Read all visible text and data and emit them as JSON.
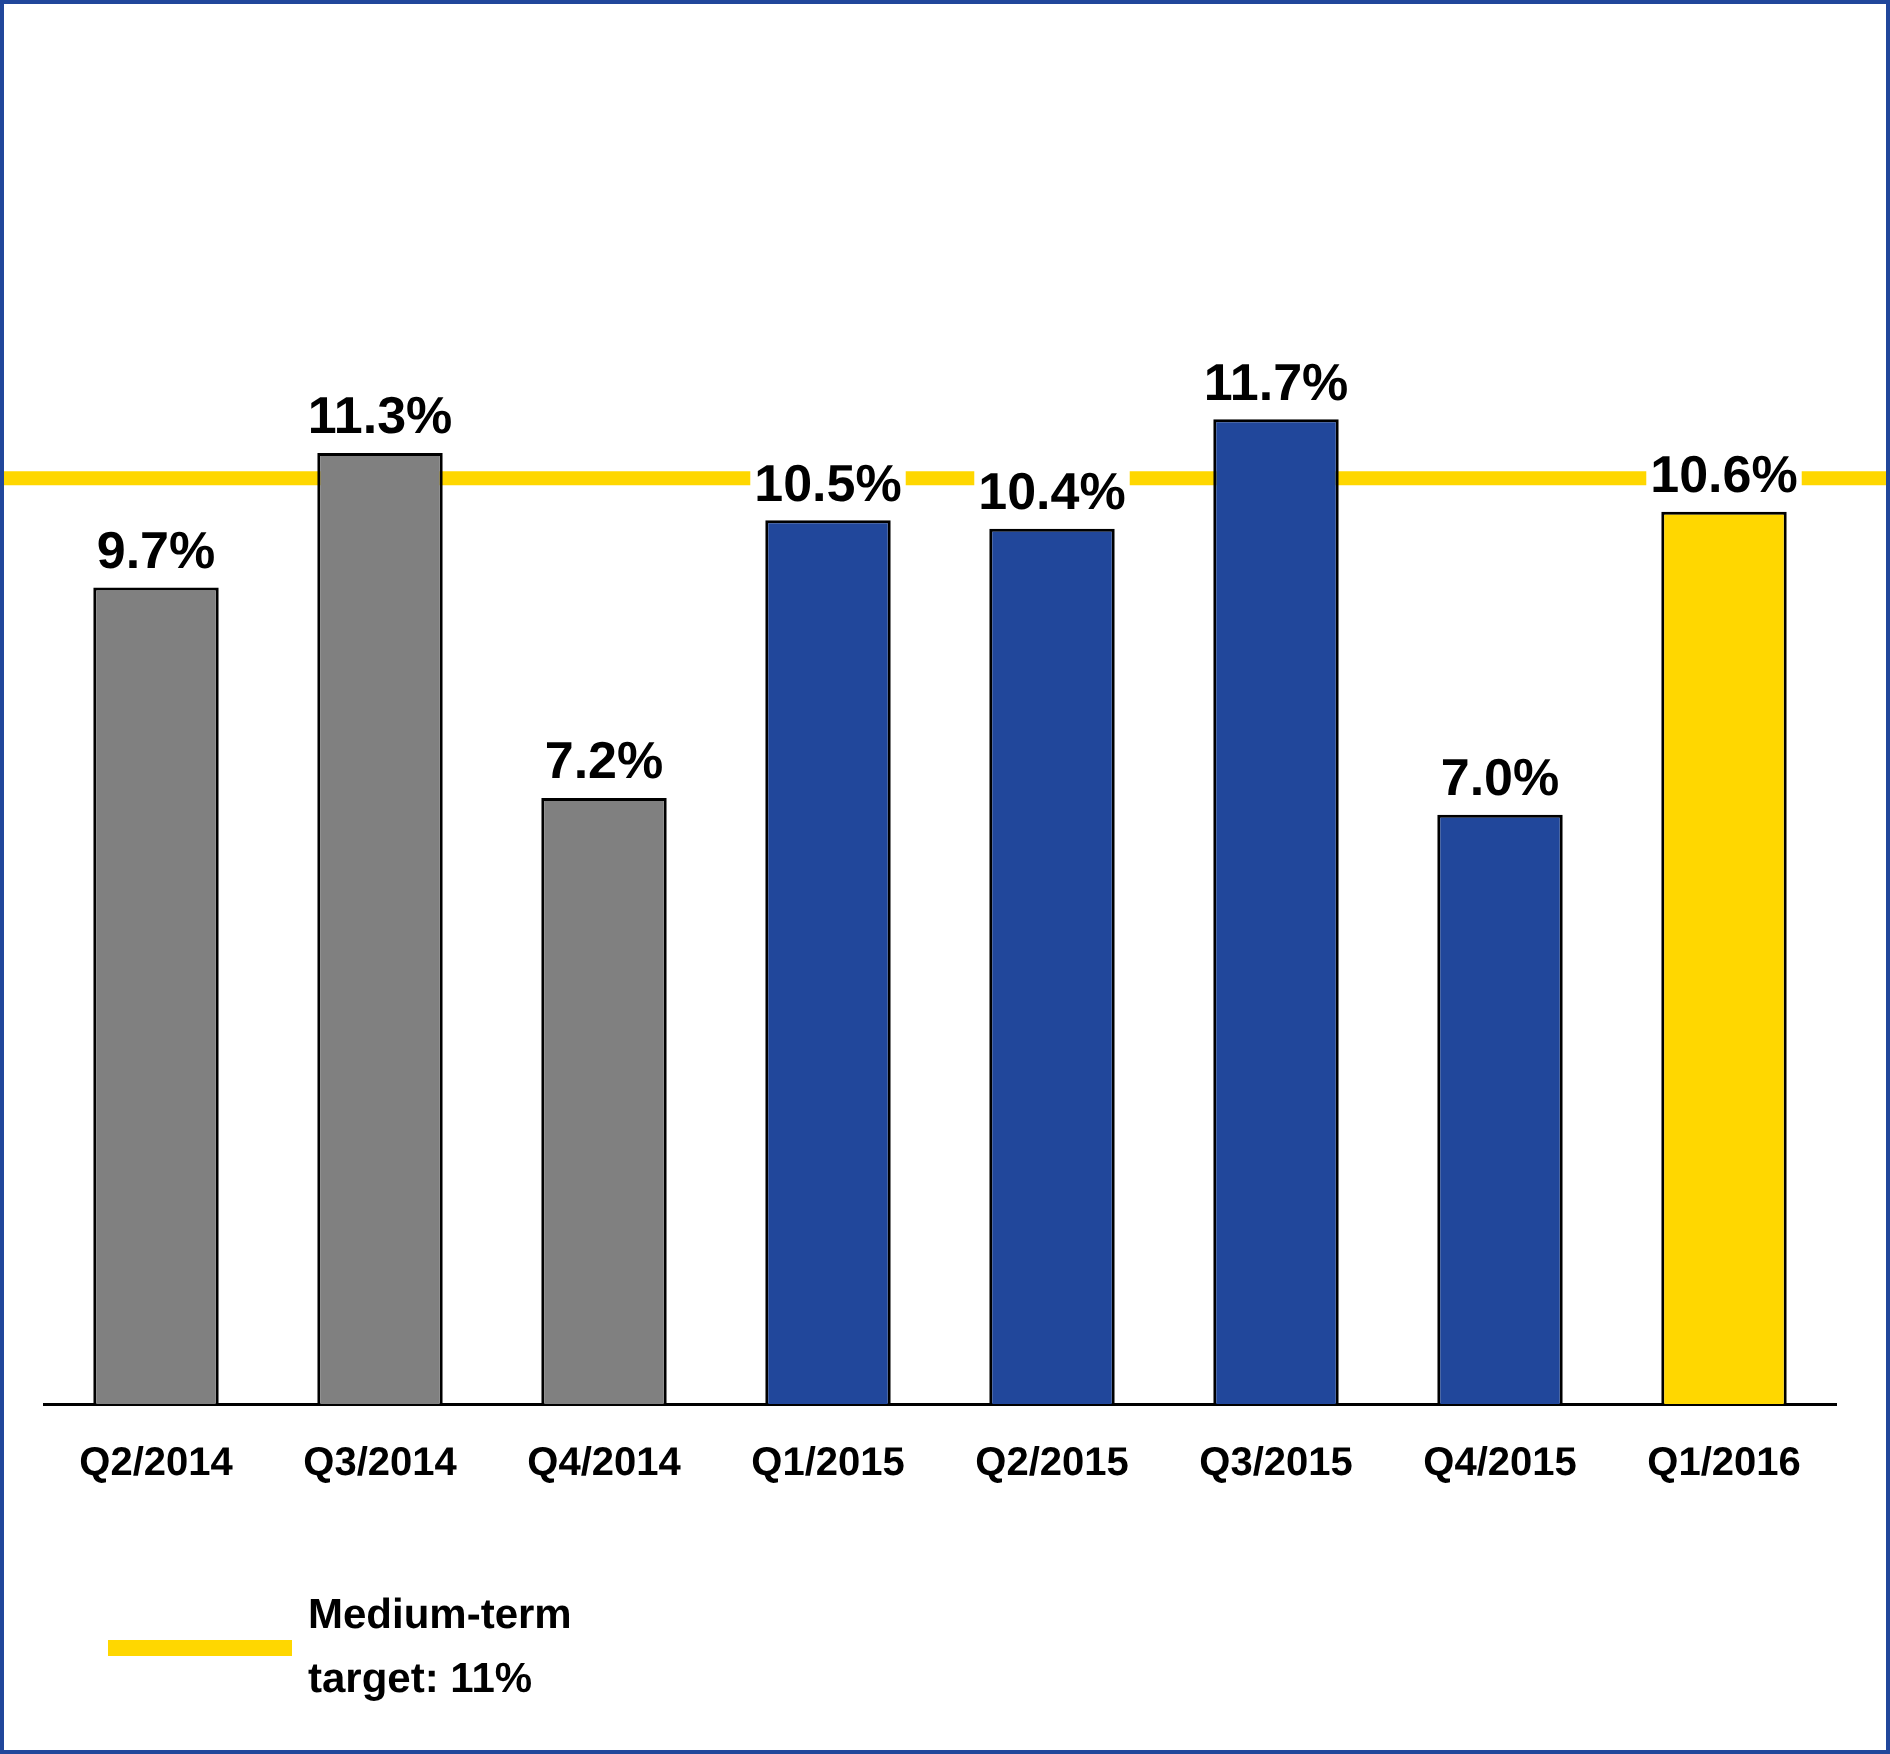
{
  "chart_data": {
    "type": "bar",
    "categories": [
      "Q2/2014",
      "Q3/2014",
      "Q4/2014",
      "Q1/2015",
      "Q2/2015",
      "Q3/2015",
      "Q4/2015",
      "Q1/2016"
    ],
    "values": [
      9.7,
      11.3,
      7.2,
      10.5,
      10.4,
      11.7,
      7.0,
      10.6
    ],
    "value_labels": [
      "9.7%",
      "11.3%",
      "7.2%",
      "10.5%",
      "10.4%",
      "11.7%",
      "7.0%",
      "10.6%"
    ],
    "colors": [
      "#808080",
      "#808080",
      "#808080",
      "#21479b",
      "#21479b",
      "#21479b",
      "#21479b",
      "#ffd700"
    ],
    "tick_labels": "x",
    "grid": false,
    "legend": "bottom left",
    "ref_lines": [
      {
        "axis": "y",
        "value": 11,
        "label": "Medium-term target: 11%",
        "color": "#ffd700"
      }
    ]
  }
}
